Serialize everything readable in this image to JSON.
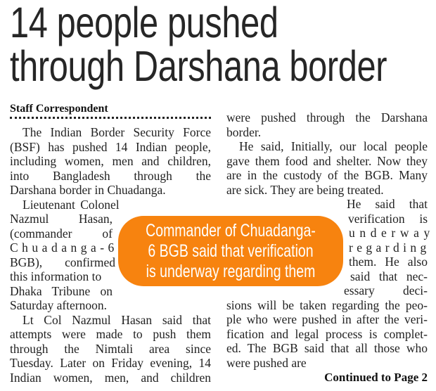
{
  "headline": {
    "line1": "14 people pushed",
    "line2": "through Darshana border"
  },
  "byline": "Staff Correspondent",
  "callout": {
    "text": "Commander of Chuadanga-6 BGB said that verification is underway regarding them",
    "color": "#f7830f"
  },
  "left_column": [
    "The Indian Border Security Force",
    "(BSF) has pushed 14 Indian people,",
    "including women, men and children,",
    "into Bangladesh through the",
    "Darshana border in Chuadanga.",
    "Lieutenant Colonel",
    "Nazmul Hasan,",
    "(commander of",
    "Chuadanga-6",
    "BGB), confirmed",
    "this information to",
    "Dhaka Tribune on",
    "Saturday afternoon.",
    "Lt Col Nazmul Hasan said that",
    "attempts were made to push them",
    "through the Nimtali area since",
    "Tuesday. Later on Friday evening, 14",
    "Indian women, men, and children"
  ],
  "right_column": [
    "were pushed through the Darshana",
    "border.",
    "He said, Initially, our local people",
    "gave them food and shelter. Now they",
    "are in the custody of the BGB. Many",
    "are sick. They are being treated.",
    "He said that",
    "verification is",
    "underway",
    "regarding",
    "them. He also",
    "said that nec-",
    "essary deci-",
    "sions will be taken regarding the peo-",
    "ple who were pushed in after the veri-",
    "fication and legal process is complet-",
    "ed. The BGB said that all those who",
    "were pushed are"
  ],
  "continued": "Continued to Page 2"
}
